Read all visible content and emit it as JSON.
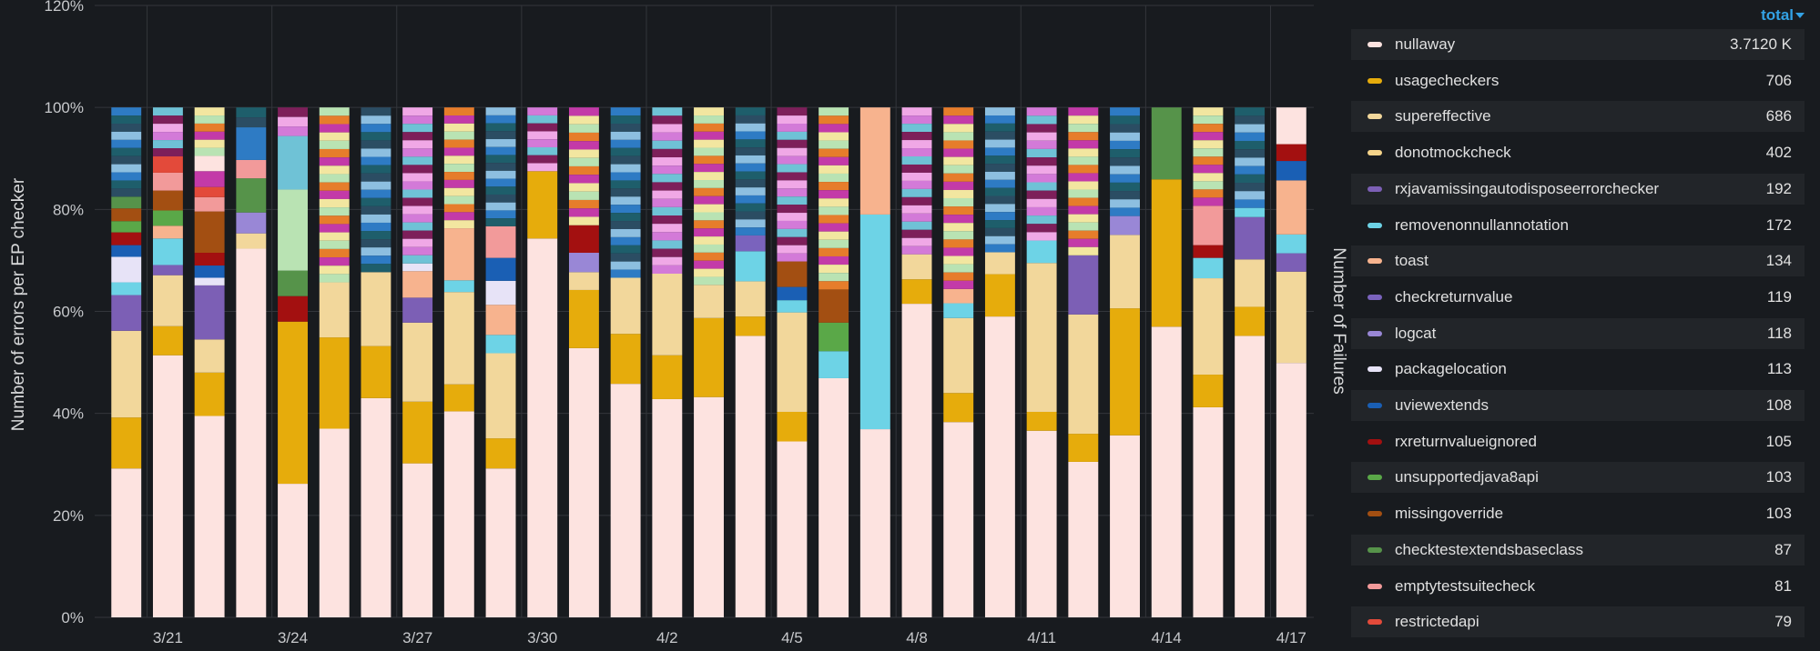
{
  "chart_data": {
    "type": "bar",
    "stacked": true,
    "ylabel": "Number of errors per EP checker",
    "y2label": "Number of Failures",
    "ylim": [
      0,
      120
    ],
    "yticks": [
      "0%",
      "20%",
      "40%",
      "60%",
      "80%",
      "100%",
      "120%"
    ],
    "xtick_labels": [
      "3/21",
      "3/24",
      "3/27",
      "3/30",
      "4/2",
      "4/5",
      "4/8",
      "4/11",
      "4/14",
      "4/17"
    ],
    "grid": true,
    "legend_placement": "right",
    "legend_sort_label": "total",
    "legend": [
      {
        "name": "nullaway",
        "value": "3.7120 K",
        "color": "#fde3e0"
      },
      {
        "name": "usagecheckers",
        "value": "706",
        "color": "#e6ac0c"
      },
      {
        "name": "supereffective",
        "value": "686",
        "color": "#f2d79b"
      },
      {
        "name": "donotmockcheck",
        "value": "402",
        "color": "#f5d48a"
      },
      {
        "name": "rxjavamissingautodisposeerrorchecker",
        "value": "192",
        "color": "#7c5fb5"
      },
      {
        "name": "removenonnullannotation",
        "value": "172",
        "color": "#6dd3e6"
      },
      {
        "name": "toast",
        "value": "134",
        "color": "#f7b38e"
      },
      {
        "name": "checkreturnvalue",
        "value": "119",
        "color": "#7a63bd"
      },
      {
        "name": "logcat",
        "value": "118",
        "color": "#9987d6"
      },
      {
        "name": "packagelocation",
        "value": "113",
        "color": "#e7e3f7"
      },
      {
        "name": "uviewextends",
        "value": "108",
        "color": "#1a5fb4"
      },
      {
        "name": "rxreturnvalueignored",
        "value": "105",
        "color": "#a31010"
      },
      {
        "name": "unsupportedjava8api",
        "value": "103",
        "color": "#5aa848"
      },
      {
        "name": "missingoverride",
        "value": "103",
        "color": "#a34f12"
      },
      {
        "name": "checktestextendsbaseclass",
        "value": "87",
        "color": "#56934a"
      },
      {
        "name": "emptytestsuitecheck",
        "value": "81",
        "color": "#f29a9a"
      },
      {
        "name": "restrictedapi",
        "value": "79",
        "color": "#e34a3a"
      }
    ],
    "other_colors": [
      "#2e7bc4",
      "#b9e3b3",
      "#d37ad8",
      "#1e5e6b",
      "#e67d2b",
      "#6fc2d6",
      "#2b4d63",
      "#c33aa8",
      "#7d1f5a",
      "#8dbfe0",
      "#f2e6a0",
      "#f0a8e6"
    ],
    "bars": [
      [
        29.2,
        10.0,
        17.0,
        0,
        7.0,
        2.5,
        0,
        0,
        0,
        5.0,
        2.3,
        2.5,
        2.2,
        2.5,
        2.3,
        0,
        0,
        0,
        0,
        0,
        0,
        0,
        0,
        0,
        0,
        0,
        0,
        0,
        0,
        0
      ],
      [
        51.4,
        5.7,
        10.0,
        0,
        2.0,
        5.2,
        2.5,
        0,
        0,
        0,
        0,
        0,
        3.0,
        3.9,
        0,
        3.5,
        3.2,
        0,
        0,
        0,
        0,
        0,
        0,
        0,
        0,
        0,
        0,
        0,
        0,
        0
      ],
      [
        39.5,
        8.5,
        6.5,
        0,
        10.6,
        0,
        0,
        0,
        0,
        1.5,
        2.4,
        2.5,
        0,
        8.1,
        0,
        2.8,
        2.0,
        0,
        0,
        0,
        0,
        0,
        0,
        0,
        3.1,
        0,
        0,
        0,
        0,
        3.0
      ],
      [
        72.3,
        0,
        3.0,
        0,
        0,
        0,
        0,
        0,
        4.1,
        0,
        0,
        0,
        0,
        0,
        6.7,
        3.6,
        0,
        6.4,
        0,
        0,
        0,
        0,
        0,
        0,
        0,
        0,
        0,
        0,
        0,
        0
      ],
      [
        26.2,
        31.8,
        0,
        0,
        0,
        0,
        0,
        0,
        0,
        0,
        0,
        5.0,
        0,
        0,
        5.0,
        0,
        0,
        0,
        15.9,
        0,
        0,
        0,
        10.5,
        0,
        0,
        0,
        0,
        0,
        0,
        0
      ],
      [
        37.0,
        17.9,
        10.8,
        0,
        0,
        0,
        0,
        0,
        0,
        0,
        0,
        0,
        0,
        0,
        0,
        0,
        0,
        0,
        0,
        0,
        0,
        0,
        0,
        0,
        0,
        0,
        0,
        0,
        0,
        0
      ],
      [
        43.0,
        10.2,
        14.5,
        0,
        0,
        0,
        0,
        0,
        0,
        0,
        0,
        0,
        0,
        0,
        0,
        0,
        0,
        0,
        0,
        0,
        0,
        0,
        0,
        0,
        0,
        0,
        0,
        0,
        0,
        0
      ],
      [
        30.2,
        12.1,
        15.5,
        0,
        4.9,
        0,
        5.2,
        0,
        0,
        1.5,
        0,
        0,
        0,
        0,
        0,
        0,
        0,
        0,
        0,
        0,
        0,
        0,
        0,
        0,
        0,
        0,
        0,
        0,
        0,
        0
      ],
      [
        40.4,
        5.3,
        18.1,
        0,
        0,
        2.3,
        10.2,
        0,
        0,
        0,
        0,
        0,
        0,
        0,
        0,
        0,
        0,
        0,
        0,
        0,
        0,
        0,
        0,
        0,
        0,
        0,
        0,
        0,
        0,
        0
      ],
      [
        29.2,
        5.9,
        16.7,
        0,
        0,
        3.6,
        5.9,
        0,
        0,
        4.7,
        4.5,
        0,
        0,
        0,
        0,
        6.2,
        0,
        0,
        0,
        0,
        0,
        0,
        0,
        0,
        0,
        0,
        0,
        0,
        0,
        0
      ],
      [
        74.3,
        13.2,
        0,
        0,
        0,
        0,
        0,
        0,
        0,
        0,
        0,
        0,
        0,
        0,
        0,
        0,
        0,
        0,
        0,
        0,
        0,
        0,
        0,
        0,
        0,
        0,
        0,
        0,
        0,
        0
      ],
      [
        52.8,
        11.4,
        3.5,
        0,
        0,
        0,
        0,
        0,
        3.8,
        0,
        0,
        5.4,
        0,
        0,
        0,
        0,
        0,
        0,
        0,
        0,
        0,
        0,
        0,
        0,
        0,
        0,
        0,
        0,
        0,
        0
      ],
      [
        45.8,
        9.8,
        11.0,
        0,
        0,
        0,
        0,
        0,
        0,
        0,
        0,
        0,
        0,
        0,
        0,
        0,
        0,
        0,
        0,
        0,
        0,
        0,
        0,
        0,
        0,
        0,
        0,
        0,
        0,
        0
      ],
      [
        42.8,
        8.6,
        16.0,
        0,
        0,
        0,
        0,
        0,
        0,
        0,
        0,
        0,
        0,
        0,
        0,
        0,
        0,
        0,
        0,
        0,
        0,
        0,
        0,
        0,
        0,
        0,
        0,
        0,
        0,
        0
      ],
      [
        43.2,
        15.5,
        6.5,
        0,
        0,
        0,
        0,
        0,
        0,
        0,
        0,
        0,
        0,
        0,
        0,
        0,
        0,
        0,
        0,
        0,
        0,
        0,
        0,
        0,
        0,
        0,
        0,
        0,
        0,
        0
      ],
      [
        55.2,
        3.8,
        6.9,
        0,
        0,
        5.9,
        0,
        3.1,
        0,
        0,
        0,
        0,
        0,
        0,
        0,
        0,
        0,
        0,
        0,
        0,
        0,
        0,
        0,
        0,
        0,
        0,
        0,
        0,
        0,
        0
      ],
      [
        34.5,
        5.8,
        19.5,
        0,
        0,
        2.4,
        0,
        0,
        0,
        0,
        2.6,
        0,
        0,
        5.0,
        0,
        0,
        0,
        0,
        0,
        0,
        0,
        0,
        0,
        0,
        0,
        0,
        0,
        0,
        0,
        0
      ],
      [
        46.9,
        0,
        0,
        0,
        0,
        5.3,
        0,
        0,
        0,
        0,
        0,
        0,
        5.6,
        6.5,
        0,
        0,
        0,
        0,
        0,
        0,
        0,
        0,
        0,
        0,
        0,
        0,
        0,
        0,
        0,
        0
      ],
      [
        36.9,
        0,
        0,
        0,
        0,
        42.1,
        21.0,
        0,
        0,
        0,
        0,
        0,
        0,
        0,
        0,
        0,
        0,
        0,
        0,
        0,
        0,
        0,
        0,
        0,
        0,
        0,
        0,
        0,
        0,
        0
      ],
      [
        61.5,
        4.8,
        4.9,
        0,
        0,
        0,
        0,
        0,
        0,
        0,
        0,
        0,
        0,
        0,
        0,
        0,
        0,
        0,
        0,
        0,
        0,
        0,
        0,
        0,
        0,
        0,
        0,
        0,
        0,
        0
      ],
      [
        38.3,
        5.7,
        14.7,
        0,
        0,
        2.9,
        2.8,
        0,
        0,
        0,
        0,
        0,
        0,
        0,
        0,
        0,
        0,
        0,
        0,
        0,
        0,
        0,
        0,
        0,
        0,
        0,
        0,
        0,
        0,
        0
      ],
      [
        59.0,
        8.3,
        4.3,
        0,
        0,
        0,
        0,
        0,
        0,
        0,
        0,
        0,
        0,
        0,
        0,
        0,
        0,
        0,
        0,
        0,
        0,
        0,
        0,
        0,
        0,
        0,
        0,
        0,
        0,
        0
      ],
      [
        36.6,
        3.7,
        29.2,
        0,
        0,
        4.4,
        0,
        0,
        0,
        0,
        0,
        0,
        0,
        0,
        0,
        0,
        0,
        0,
        0,
        0,
        0,
        0,
        0,
        0,
        0,
        0,
        0,
        0,
        0,
        0
      ],
      [
        30.5,
        5.5,
        23.4,
        0,
        11.6,
        0,
        0,
        0,
        0,
        0,
        0,
        0,
        0,
        0,
        0,
        0,
        0,
        0,
        0,
        0,
        0,
        0,
        0,
        0,
        0,
        0,
        0,
        0,
        0,
        0
      ],
      [
        35.7,
        24.9,
        14.4,
        0,
        0,
        0,
        0,
        0,
        3.7,
        0,
        0,
        0,
        0,
        0,
        0,
        0,
        0,
        0,
        0,
        0,
        0,
        0,
        0,
        0,
        0,
        0,
        0,
        0,
        0,
        0
      ],
      [
        57.0,
        28.9,
        0,
        0,
        0,
        0,
        0,
        0,
        0,
        0,
        0,
        0,
        0,
        0,
        14.1,
        0,
        0,
        0,
        0,
        0,
        0,
        0,
        0,
        0,
        0,
        0,
        0,
        0,
        0,
        0
      ],
      [
        41.2,
        6.4,
        18.9,
        0,
        0,
        4.0,
        0,
        0,
        0,
        0,
        0,
        2.5,
        0,
        0,
        0,
        7.7,
        0,
        0,
        0,
        0,
        0,
        0,
        0,
        0,
        0,
        0,
        0,
        0,
        0,
        0
      ],
      [
        55.2,
        5.7,
        9.3,
        0,
        8.3,
        1.8,
        0,
        0,
        0,
        0,
        0,
        0,
        0,
        0,
        0,
        0,
        0,
        0,
        0,
        0,
        0,
        0,
        0,
        0,
        0,
        0,
        0,
        0,
        0,
        0
      ],
      [
        49.9,
        0,
        17.9,
        0,
        3.6,
        3.7,
        10.6,
        0,
        0,
        0,
        3.8,
        3.3,
        0,
        0,
        0,
        0,
        0,
        0,
        0,
        0,
        0,
        0,
        0,
        0,
        0,
        0,
        0,
        0,
        0,
        7.2
      ]
    ]
  }
}
